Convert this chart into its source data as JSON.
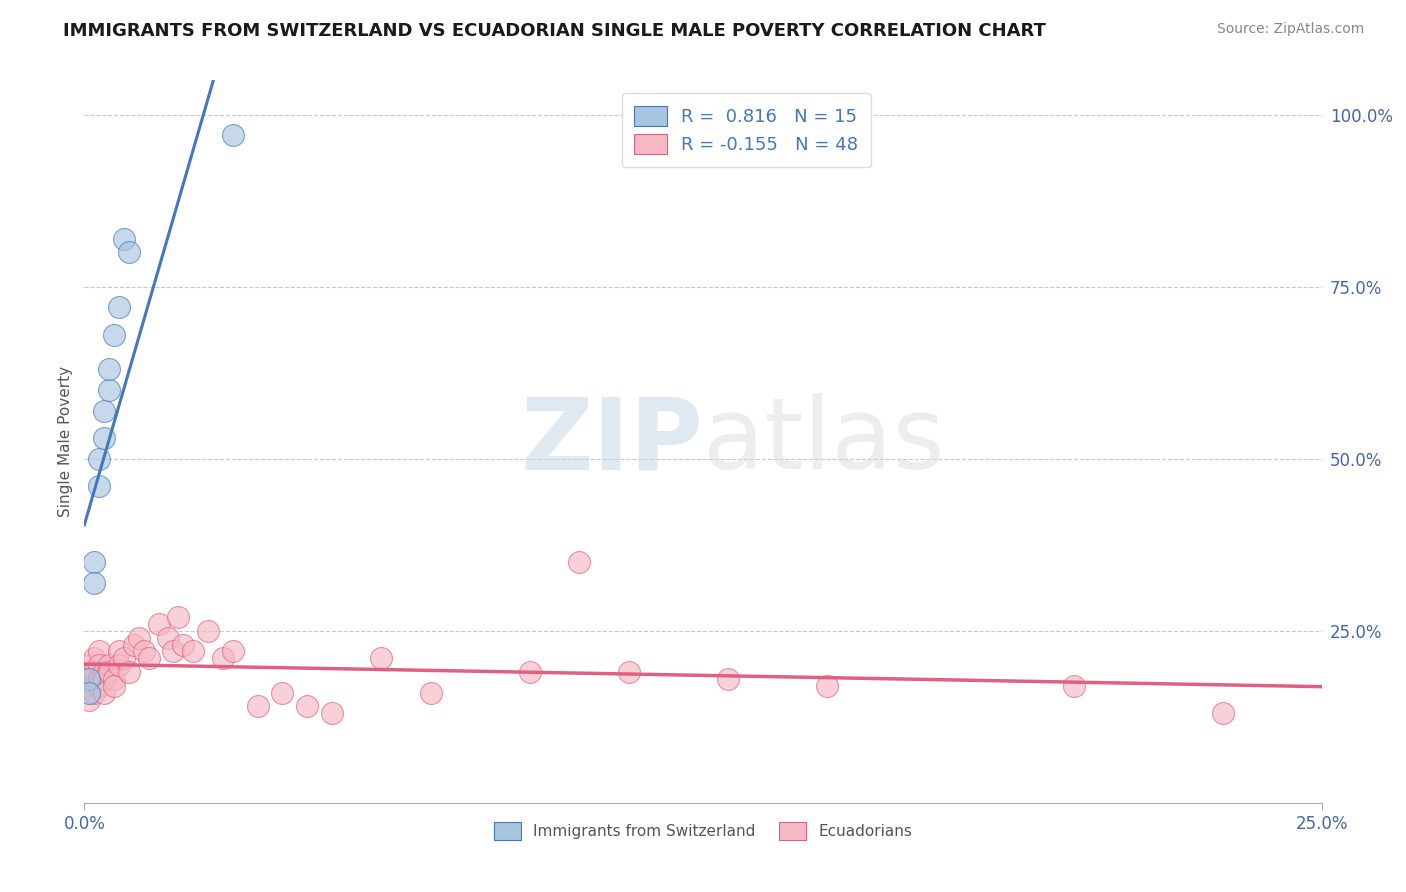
{
  "title": "IMMIGRANTS FROM SWITZERLAND VS ECUADORIAN SINGLE MALE POVERTY CORRELATION CHART",
  "source": "Source: ZipAtlas.com",
  "ylabel": "Single Male Poverty",
  "yaxis_labels": [
    "25.0%",
    "50.0%",
    "75.0%",
    "100.0%"
  ],
  "yaxis_values": [
    0.25,
    0.5,
    0.75,
    1.0
  ],
  "xlim": [
    0.0,
    0.25
  ],
  "ylim": [
    0.0,
    1.05
  ],
  "legend_blue_r": "R =  0.816",
  "legend_blue_n": "N = 15",
  "legend_pink_r": "R = -0.155",
  "legend_pink_n": "N = 48",
  "watermark_zip": "ZIP",
  "watermark_atlas": "atlas",
  "blue_color": "#A8C4E0",
  "pink_color": "#F5B8C4",
  "blue_line_color": "#4477BB",
  "pink_line_color": "#E06080",
  "swiss_x": [
    0.001,
    0.001,
    0.002,
    0.002,
    0.003,
    0.003,
    0.004,
    0.004,
    0.005,
    0.005,
    0.006,
    0.007,
    0.008,
    0.009,
    0.03
  ],
  "swiss_y": [
    0.18,
    0.16,
    0.35,
    0.32,
    0.46,
    0.5,
    0.53,
    0.57,
    0.6,
    0.63,
    0.68,
    0.72,
    0.82,
    0.8,
    0.97
  ],
  "ecuador_x": [
    0.001,
    0.001,
    0.001,
    0.002,
    0.002,
    0.002,
    0.002,
    0.003,
    0.003,
    0.003,
    0.003,
    0.004,
    0.004,
    0.004,
    0.005,
    0.005,
    0.006,
    0.006,
    0.007,
    0.007,
    0.008,
    0.009,
    0.01,
    0.011,
    0.012,
    0.013,
    0.015,
    0.017,
    0.018,
    0.019,
    0.02,
    0.022,
    0.025,
    0.028,
    0.03,
    0.035,
    0.04,
    0.045,
    0.05,
    0.06,
    0.07,
    0.09,
    0.1,
    0.11,
    0.13,
    0.15,
    0.2,
    0.23
  ],
  "ecuador_y": [
    0.2,
    0.18,
    0.15,
    0.21,
    0.19,
    0.17,
    0.16,
    0.22,
    0.2,
    0.18,
    0.17,
    0.19,
    0.18,
    0.16,
    0.2,
    0.19,
    0.18,
    0.17,
    0.22,
    0.2,
    0.21,
    0.19,
    0.23,
    0.24,
    0.22,
    0.21,
    0.26,
    0.24,
    0.22,
    0.27,
    0.23,
    0.22,
    0.25,
    0.21,
    0.22,
    0.14,
    0.16,
    0.14,
    0.13,
    0.21,
    0.16,
    0.19,
    0.35,
    0.19,
    0.18,
    0.17,
    0.17,
    0.13
  ]
}
